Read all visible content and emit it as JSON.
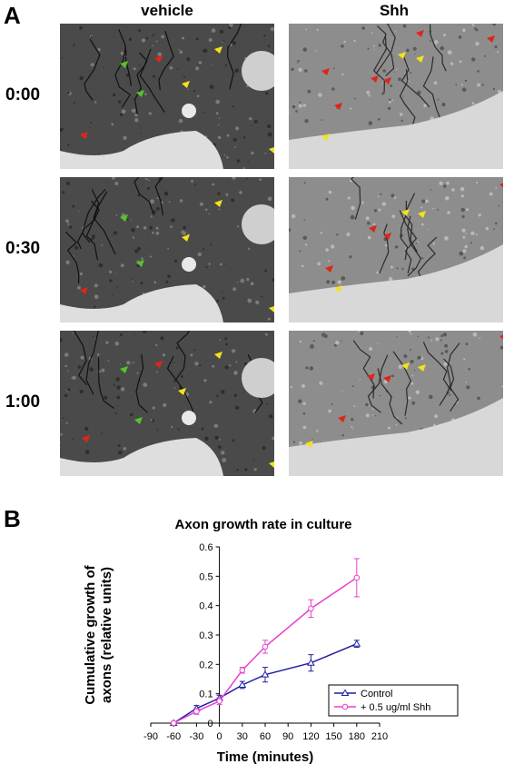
{
  "panel_a": {
    "letter": "A",
    "columns": [
      "vehicle",
      "Shh"
    ],
    "time_labels": [
      "0:00",
      "0:30",
      "1:00"
    ]
  },
  "panel_b": {
    "letter": "B"
  },
  "colors": {
    "control": "#1f1fa0",
    "shh": "#e83fcf",
    "arrow_red": "#e0241b",
    "arrow_yellow": "#f2e21b",
    "arrow_green": "#57c32b"
  },
  "chart_data": {
    "type": "line",
    "title": "Axon growth rate in culture",
    "xlabel": "Time (minutes)",
    "ylabel": "Cumulative growth of axons (relative units)",
    "xlim": [
      -90,
      210
    ],
    "ylim": [
      0,
      0.6
    ],
    "xticks": [
      -90,
      -60,
      -30,
      0,
      30,
      60,
      90,
      120,
      150,
      180,
      210
    ],
    "yticks": [
      0,
      0.1,
      0.2,
      0.3,
      0.4,
      0.5,
      0.6
    ],
    "x": [
      -60,
      -30,
      0,
      30,
      60,
      120,
      180
    ],
    "series": [
      {
        "name": "Control",
        "marker": "triangle",
        "values": [
          0.0,
          0.05,
          0.085,
          0.13,
          0.165,
          0.205,
          0.27
        ],
        "errors": [
          0.005,
          0.01,
          0.01,
          0.012,
          0.025,
          0.028,
          0.012
        ]
      },
      {
        "name": "+ 0.5 ug/ml Shh",
        "marker": "circle",
        "values": [
          0.0,
          0.04,
          0.075,
          0.18,
          0.26,
          0.39,
          0.495
        ],
        "errors": [
          0.005,
          0.01,
          0.012,
          0.01,
          0.022,
          0.03,
          0.065
        ]
      }
    ],
    "legend": "bottom-right",
    "grid": false
  }
}
